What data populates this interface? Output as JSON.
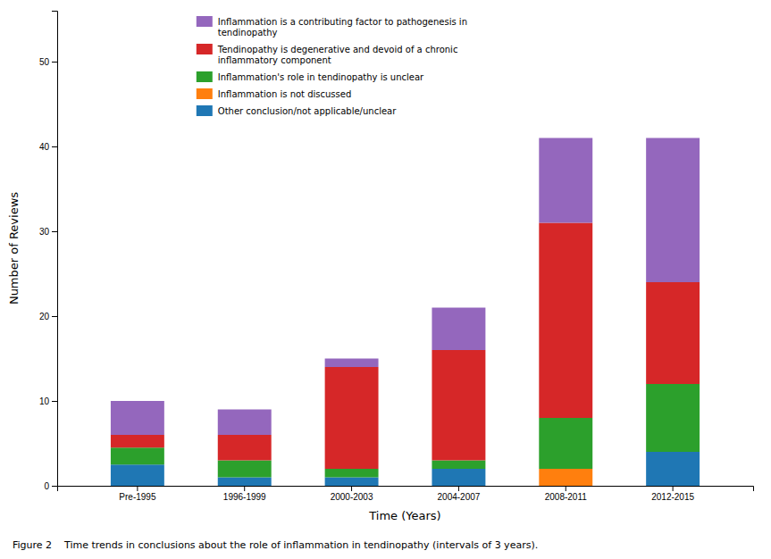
{
  "chart_data": {
    "type": "bar",
    "stacked": true,
    "categories": [
      "Pre-1995",
      "1996-1999",
      "2000-2003",
      "2004-2007",
      "2008-2011",
      "2012-2015"
    ],
    "series": [
      {
        "name": "Other conclusion/not applicable/unclear",
        "values": [
          2.5,
          1,
          1,
          2,
          0,
          4
        ]
      },
      {
        "name": "Inflammation is not discussed",
        "values": [
          0,
          0,
          0,
          0,
          2,
          0
        ]
      },
      {
        "name": "Inflammation's role in tendinopathy is unclear",
        "values": [
          2,
          2,
          1,
          1,
          6,
          8
        ]
      },
      {
        "name": "Tendinopathy is degenerative and devoid of a chronic\ninflammatory component",
        "values": [
          1.5,
          3,
          12,
          13,
          23,
          12
        ]
      },
      {
        "name": "Inflammation is a contributing factor to pathogenesis in\ntendinopathy",
        "values": [
          4,
          3,
          1,
          5,
          10,
          17
        ]
      }
    ],
    "x_label": "Time (Years)",
    "y_label": "Number of Reviews",
    "ylim": [
      0,
      56
    ],
    "yticks": [
      0,
      10,
      20,
      30,
      40,
      50
    ],
    "grid": false,
    "legend": "upper left",
    "annotations": [
      "Figure 2    Time trends in conclusions about the role of inflammation in tendinopathy (intervals of 3 years)."
    ]
  }
}
